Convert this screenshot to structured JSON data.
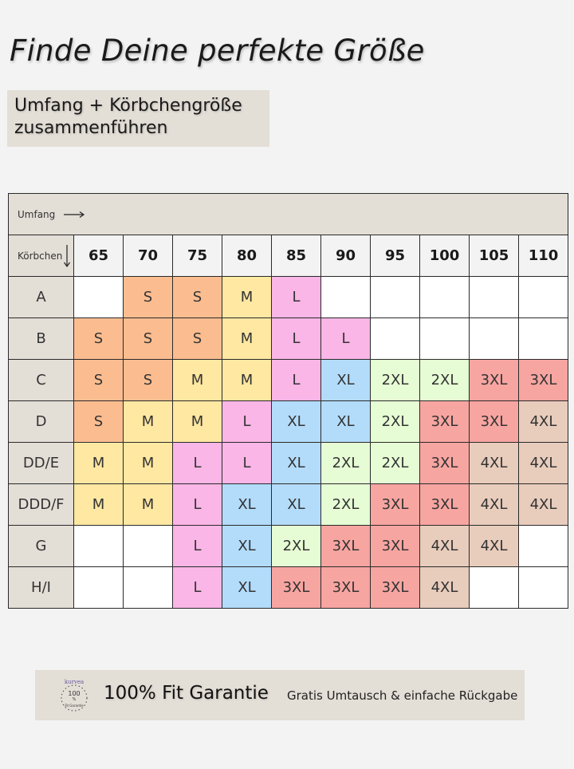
{
  "title": "Finde Deine perfekte Größe",
  "subtitle": {
    "line1": "Umfang + Körbchengröße",
    "line2": "zusammenführen"
  },
  "table": {
    "umfang_label": "Umfang",
    "koerbchen_label": "Körbchen",
    "columns": [
      "65",
      "70",
      "75",
      "80",
      "85",
      "90",
      "95",
      "100",
      "105",
      "110"
    ],
    "rows": [
      {
        "cup": "A",
        "sizes": [
          "",
          "S",
          "S",
          "M",
          "L",
          "",
          "",
          "",
          "",
          ""
        ]
      },
      {
        "cup": "B",
        "sizes": [
          "S",
          "S",
          "S",
          "M",
          "L",
          "L",
          "",
          "",
          "",
          ""
        ]
      },
      {
        "cup": "C",
        "sizes": [
          "S",
          "S",
          "M",
          "M",
          "L",
          "XL",
          "2XL",
          "2XL",
          "3XL",
          "3XL"
        ]
      },
      {
        "cup": "D",
        "sizes": [
          "S",
          "M",
          "M",
          "L",
          "XL",
          "XL",
          "2XL",
          "3XL",
          "3XL",
          "4XL"
        ]
      },
      {
        "cup": "DD/E",
        "sizes": [
          "M",
          "M",
          "L",
          "L",
          "XL",
          "2XL",
          "2XL",
          "3XL",
          "4XL",
          "4XL"
        ]
      },
      {
        "cup": "DDD/F",
        "sizes": [
          "M",
          "M",
          "L",
          "XL",
          "XL",
          "2XL",
          "3XL",
          "3XL",
          "4XL",
          "4XL"
        ]
      },
      {
        "cup": "G",
        "sizes": [
          "",
          "",
          "L",
          "XL",
          "2XL",
          "3XL",
          "3XL",
          "4XL",
          "4XL",
          ""
        ]
      },
      {
        "cup": "H/I",
        "sizes": [
          "",
          "",
          "L",
          "XL",
          "3XL",
          "3XL",
          "3XL",
          "4XL",
          "",
          ""
        ]
      }
    ],
    "size_colors": {
      "S": "#fbbd90",
      "M": "#fee8a2",
      "L": "#f9b6e6",
      "XL": "#b3dcfb",
      "2XL": "#e6fcd4",
      "3XL": "#f7a5a1",
      "4XL": "#e8ccbc"
    }
  },
  "footer": {
    "badge": {
      "brand": "kurvea",
      "number": "100",
      "percent": "%",
      "sub": "Fit Garantie",
      "icon": "fit-guarantee-badge-icon"
    },
    "title": "100% Fit Garantie",
    "subtitle": "Gratis Umtausch & einfache Rückgabe"
  },
  "colors": {
    "beige": "#e3ded6",
    "background": "#f3f3f3"
  }
}
